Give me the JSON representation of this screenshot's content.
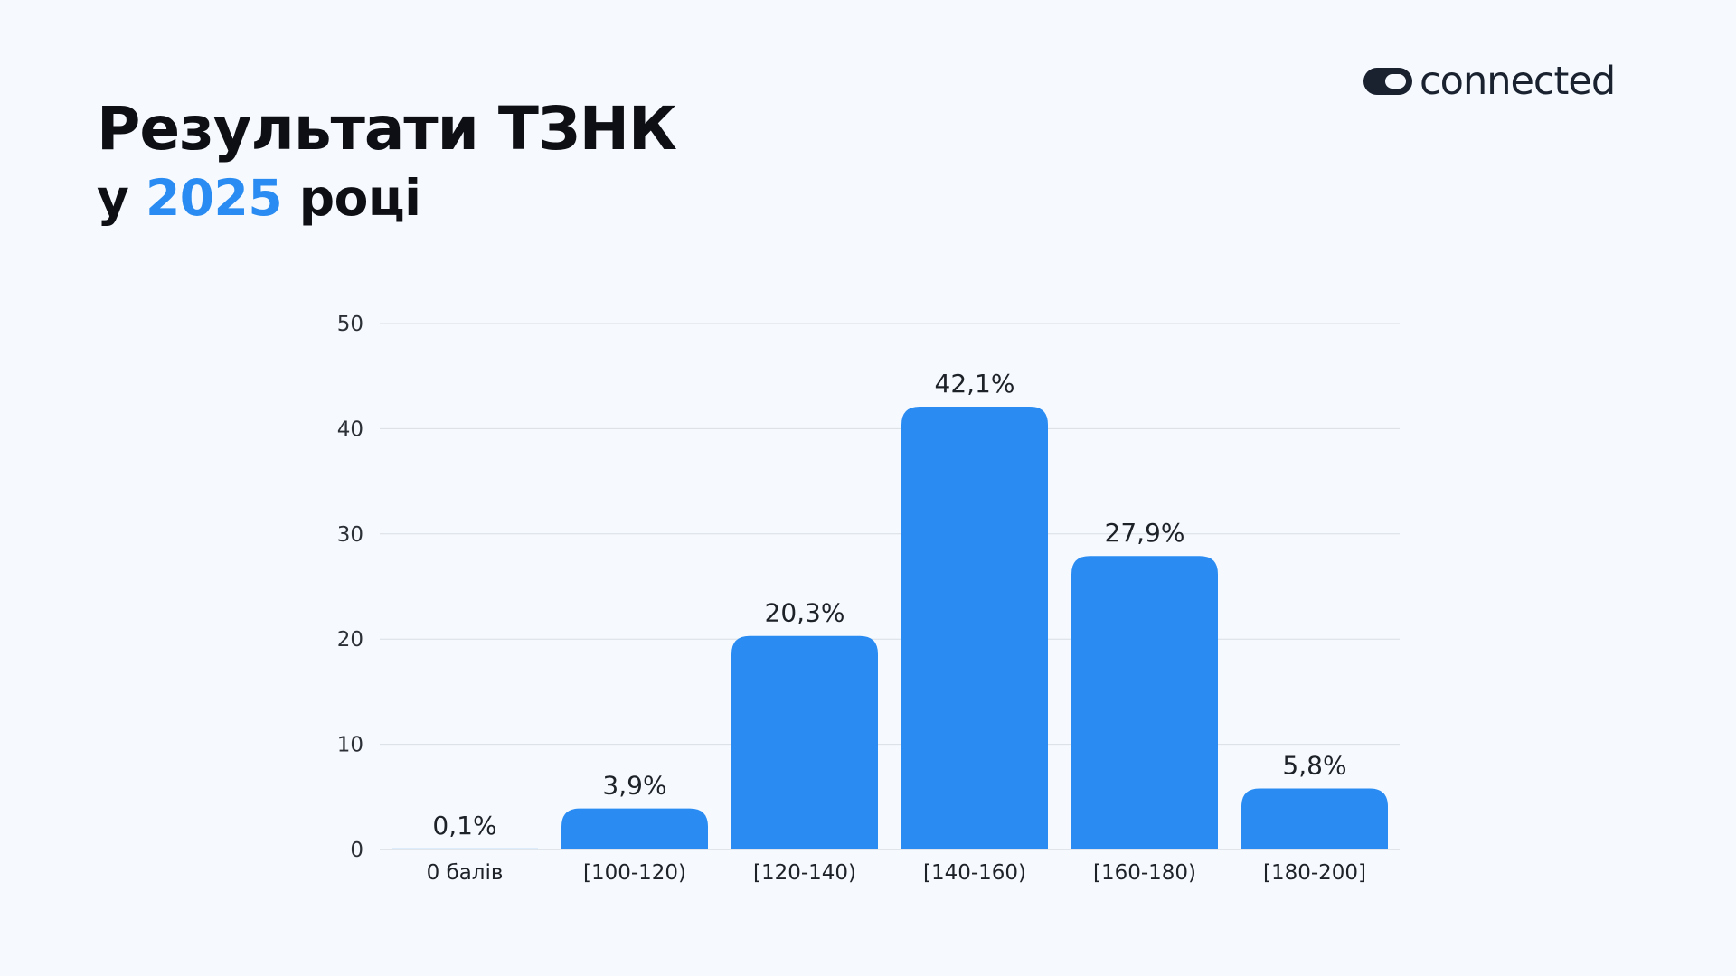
{
  "brand": {
    "name": "connected",
    "colors": {
      "text": "#1a2230",
      "accent": "#2a8cf2"
    }
  },
  "heading": {
    "title": "Результати ТЗНК",
    "subtitle_prefix": "у",
    "subtitle_year": "2025",
    "subtitle_suffix": "році"
  },
  "chart_data": {
    "type": "bar",
    "categories": [
      "0 балів",
      "[100-120)",
      "[120-140)",
      "[140-160)",
      "[160-180)",
      "[180-200]"
    ],
    "values": [
      0.1,
      3.9,
      20.3,
      42.1,
      27.9,
      5.8
    ],
    "data_labels": [
      "0,1%",
      "3,9%",
      "20,3%",
      "42,1%",
      "27,9%",
      "5,8%"
    ],
    "yticks": [
      0,
      10,
      20,
      30,
      40,
      50
    ],
    "ylim": [
      0,
      50
    ],
    "grid": true,
    "bar_color": "#2a8cf2",
    "grid_color": "#d9dee5"
  }
}
